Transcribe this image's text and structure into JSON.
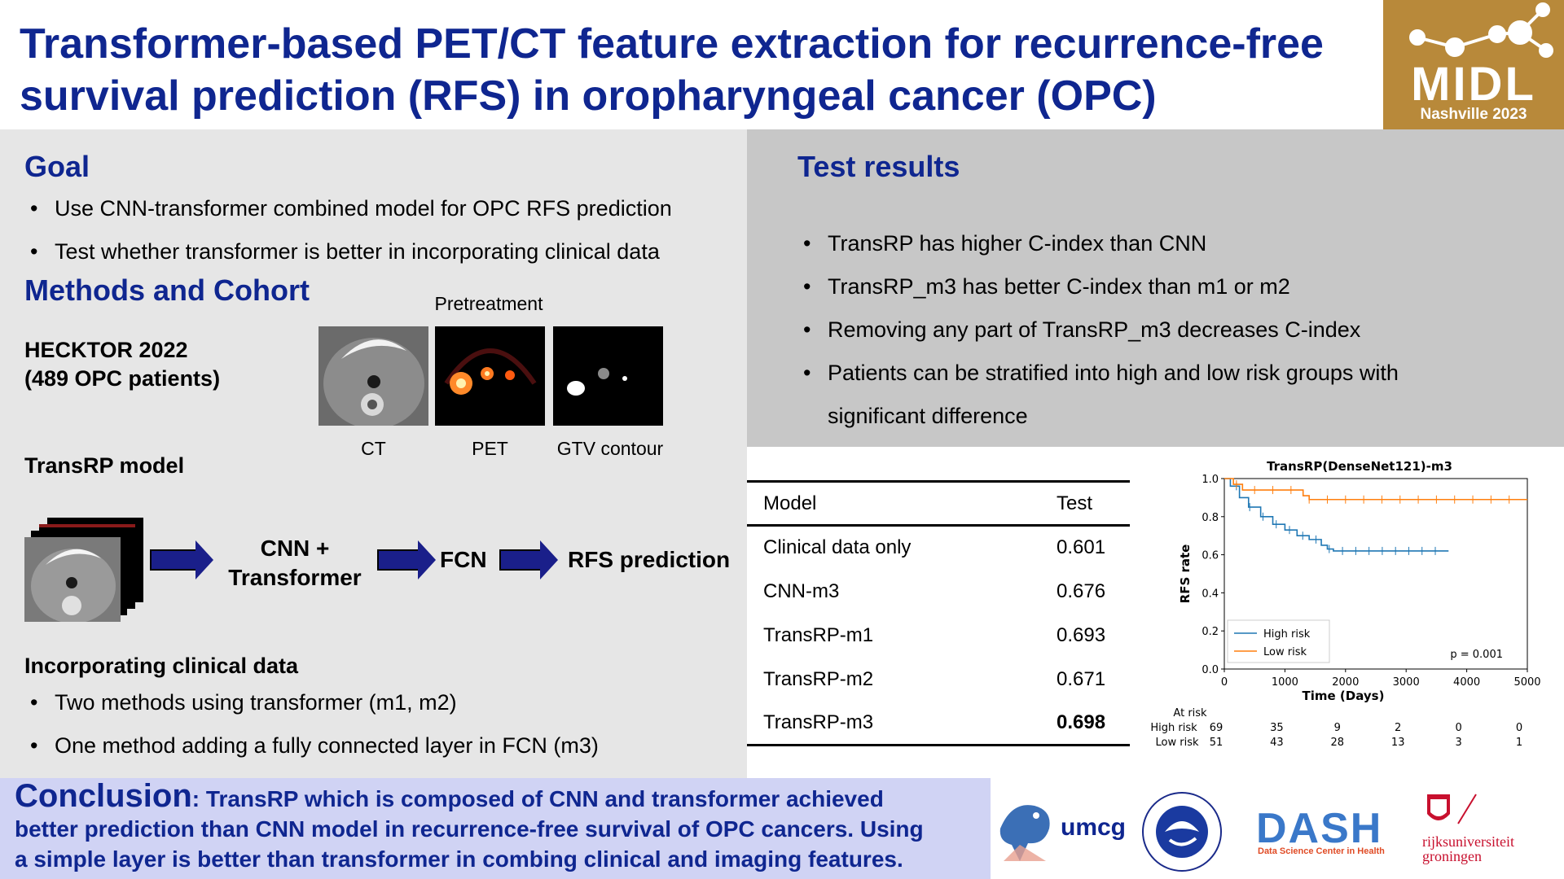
{
  "title": {
    "line1": "Transformer-based PET/CT feature extraction for recurrence-free",
    "line2": "survival prediction (RFS) in oropharyngeal cancer (OPC)"
  },
  "logo": {
    "main": "MIDL",
    "sub": "Nashville 2023"
  },
  "goal": {
    "heading": "Goal",
    "items": [
      "Use CNN-transformer combined model for OPC RFS prediction",
      "Test whether transformer is better in incorporating clinical data"
    ]
  },
  "methods": {
    "heading": "Methods and Cohort",
    "cohort_line1": "HECKTOR 2022",
    "cohort_line2": "(489 OPC patients)",
    "pretreatment_label": "Pretreatment",
    "image_labels": [
      "CT",
      "PET",
      "GTV contour"
    ],
    "model_heading": "TransRP model",
    "flow": {
      "cnn_line1": "CNN +",
      "cnn_line2": "Transformer",
      "fcn": "FCN",
      "output": "RFS prediction"
    },
    "clinical_heading": "Incorporating clinical data",
    "clinical_items": [
      "Two methods using transformer (m1, m2)",
      "One method adding a fully connected layer in FCN (m3)"
    ]
  },
  "test_results": {
    "heading": "Test results",
    "items": [
      "TransRP has higher C-index than CNN",
      "TransRP_m3 has better C-index than m1 or m2",
      "Removing any part of TransRP_m3 decreases C-index",
      "Patients can be stratified into high and low risk groups with",
      "significant difference"
    ]
  },
  "table": {
    "headers": [
      "Model",
      "Test"
    ],
    "rows": [
      [
        "Clinical data only",
        "0.601"
      ],
      [
        "CNN-m3",
        "0.676"
      ],
      [
        "TransRP-m1",
        "0.693"
      ],
      [
        "TransRP-m2",
        "0.671"
      ],
      [
        "TransRP-m3",
        "0.698"
      ]
    ]
  },
  "chart_data": {
    "type": "line",
    "title": "TransRP(DenseNet121)-m3",
    "xlabel": "Time (Days)",
    "ylabel": "RFS rate",
    "xlim": [
      0,
      5000
    ],
    "ylim": [
      0,
      1
    ],
    "xticks": [
      0,
      1000,
      2000,
      3000,
      4000,
      5000
    ],
    "yticks": [
      "0.0",
      "0.2",
      "0.4",
      "0.6",
      "0.8",
      "1.0"
    ],
    "legend_position": "lower-left",
    "annotation": "p = 0.001",
    "series": [
      {
        "name": "High risk",
        "color": "#1f77b4",
        "x": [
          0,
          100,
          250,
          400,
          600,
          800,
          1000,
          1200,
          1400,
          1600,
          1700,
          1800,
          2000,
          3700
        ],
        "y": [
          1.0,
          0.96,
          0.9,
          0.85,
          0.8,
          0.76,
          0.73,
          0.7,
          0.68,
          0.65,
          0.63,
          0.62,
          0.62,
          0.62
        ]
      },
      {
        "name": "Low risk",
        "color": "#ff7f0e",
        "x": [
          0,
          150,
          300,
          1200,
          1300,
          1400,
          2000,
          5000
        ],
        "y": [
          1.0,
          0.97,
          0.94,
          0.94,
          0.91,
          0.89,
          0.89,
          0.89
        ]
      }
    ],
    "at_risk": {
      "label": "At risk",
      "times": [
        "0",
        "1000",
        "2000",
        "3000",
        "4000",
        "5000"
      ],
      "high_label": "High risk",
      "high": [
        "69",
        "35",
        "9",
        "2",
        "0",
        "0"
      ],
      "low_label": "Low risk",
      "low": [
        "51",
        "43",
        "28",
        "13",
        "3",
        "1"
      ]
    }
  },
  "conclusion": {
    "title": "Conclusion",
    "text1": ": TransRP which is composed of CNN and transformer achieved",
    "text2": "better prediction than CNN model in recurrence-free survival of OPC cancers. Using",
    "text3": "a simple layer is better than transformer in combing clinical and imaging features."
  },
  "sponsors": {
    "umcg": "umcg",
    "dash": "DASH",
    "dash_sub": "Data Science Center in Health",
    "rug_line1": "rijksuniversiteit",
    "rug_line2": "groningen"
  }
}
